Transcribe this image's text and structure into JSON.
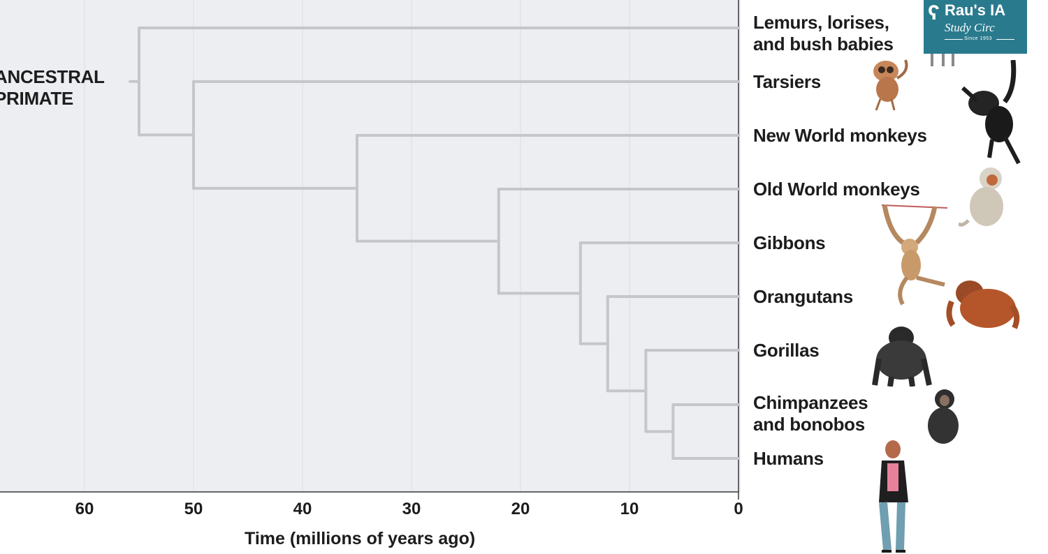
{
  "root_label_lines": [
    "ANCESTRAL",
    "PRIMATE"
  ],
  "taxa": [
    {
      "lines": [
        "Lemurs, lorises,",
        "and bush babies"
      ],
      "divergence_mya": 55
    },
    {
      "lines": [
        "Tarsiers"
      ],
      "divergence_mya": 50
    },
    {
      "lines": [
        "New World monkeys"
      ],
      "divergence_mya": 35
    },
    {
      "lines": [
        "Old World monkeys"
      ],
      "divergence_mya": 22
    },
    {
      "lines": [
        "Gibbons"
      ],
      "divergence_mya": 14.5
    },
    {
      "lines": [
        "Orangutans"
      ],
      "divergence_mya": 12
    },
    {
      "lines": [
        "Gorillas"
      ],
      "divergence_mya": 8.5
    },
    {
      "lines": [
        "Chimpanzees",
        "and bonobos"
      ],
      "divergence_mya": 6
    },
    {
      "lines": [
        "Humans"
      ],
      "divergence_mya": 6
    }
  ],
  "axis": {
    "label": "Time (millions of years ago)",
    "ticks": [
      60,
      50,
      40,
      30,
      20,
      10,
      0
    ],
    "range": [
      60,
      0
    ]
  },
  "branch_points_mya": [
    55,
    50,
    35,
    22,
    14.5,
    12,
    8.5,
    6
  ],
  "logo": {
    "line1": "Rau's IA",
    "line2": "Study Circ",
    "line3": "Since 1953"
  },
  "colors": {
    "branch": "#c4c6c9",
    "plot_background": "#eceef2",
    "gridline": "#dcdee2",
    "text": "#1c1c1c",
    "logo_background": "#2a7a8d"
  },
  "icons": [
    "lemur-icon",
    "tarsier-icon",
    "spider-monkey-icon",
    "old-world-monkey-icon",
    "gibbon-icon",
    "orangutan-icon",
    "gorilla-icon",
    "chimpanzee-icon",
    "human-icon"
  ]
}
